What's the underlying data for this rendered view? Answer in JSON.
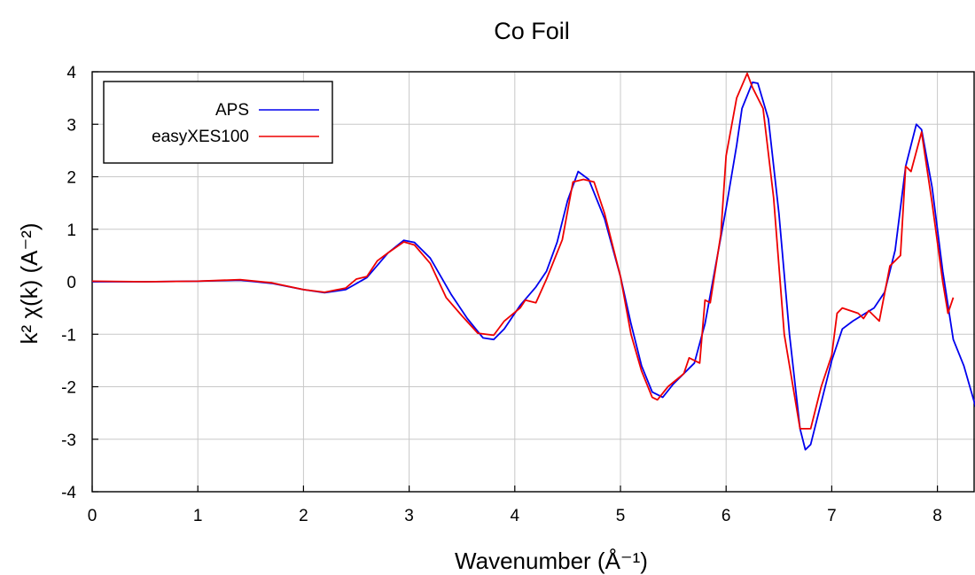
{
  "chart_data": {
    "type": "line",
    "title": "Co Foil",
    "xlabel": "Wavenumber    (Å⁻¹)",
    "ylabel": "k² χ(k)    (A⁻²)",
    "xlim": [
      0,
      8.4
    ],
    "ylim": [
      -4,
      4
    ],
    "xticks": [
      "0",
      "1",
      "2",
      "3",
      "4",
      "5",
      "6",
      "7",
      "8"
    ],
    "yticks": [
      "4",
      "3",
      "2",
      "1",
      "0",
      "-1",
      "-2",
      "-3",
      "-4"
    ],
    "grid": true,
    "legend_position": "top-left",
    "series": [
      {
        "name": "APS",
        "color": "#0000ee",
        "points": [
          [
            0,
            0
          ],
          [
            0.5,
            0
          ],
          [
            1,
            0.01
          ],
          [
            1.4,
            0.03
          ],
          [
            1.7,
            -0.03
          ],
          [
            2,
            -0.15
          ],
          [
            2.2,
            -0.21
          ],
          [
            2.4,
            -0.15
          ],
          [
            2.6,
            0.08
          ],
          [
            2.8,
            0.55
          ],
          [
            2.95,
            0.79
          ],
          [
            3.05,
            0.75
          ],
          [
            3.2,
            0.45
          ],
          [
            3.4,
            -0.25
          ],
          [
            3.55,
            -0.7
          ],
          [
            3.7,
            -1.07
          ],
          [
            3.8,
            -1.1
          ],
          [
            3.9,
            -0.9
          ],
          [
            4.05,
            -0.45
          ],
          [
            4.2,
            -0.1
          ],
          [
            4.3,
            0.2
          ],
          [
            4.4,
            0.75
          ],
          [
            4.5,
            1.55
          ],
          [
            4.6,
            2.1
          ],
          [
            4.7,
            1.95
          ],
          [
            4.85,
            1.2
          ],
          [
            5,
            0.1
          ],
          [
            5.1,
            -0.8
          ],
          [
            5.2,
            -1.6
          ],
          [
            5.3,
            -2.1
          ],
          [
            5.4,
            -2.2
          ],
          [
            5.5,
            -1.95
          ],
          [
            5.7,
            -1.55
          ],
          [
            5.8,
            -0.8
          ],
          [
            5.9,
            0.3
          ],
          [
            6,
            1.4
          ],
          [
            6.1,
            2.6
          ],
          [
            6.15,
            3.3
          ],
          [
            6.25,
            3.8
          ],
          [
            6.3,
            3.78
          ],
          [
            6.4,
            3.1
          ],
          [
            6.5,
            1.3
          ],
          [
            6.6,
            -1
          ],
          [
            6.7,
            -2.8
          ],
          [
            6.75,
            -3.2
          ],
          [
            6.8,
            -3.1
          ],
          [
            6.9,
            -2.3
          ],
          [
            7,
            -1.5
          ],
          [
            7.1,
            -0.9
          ],
          [
            7.2,
            -0.75
          ],
          [
            7.4,
            -0.5
          ],
          [
            7.5,
            -0.2
          ],
          [
            7.6,
            0.6
          ],
          [
            7.7,
            2.2
          ],
          [
            7.8,
            3
          ],
          [
            7.85,
            2.9
          ],
          [
            7.95,
            1.8
          ],
          [
            8.05,
            0.2
          ],
          [
            8.15,
            -1.1
          ],
          [
            8.25,
            -1.6
          ],
          [
            8.35,
            -2.3
          ],
          [
            8.4,
            -2.65
          ]
        ]
      },
      {
        "name": "easyXES100",
        "color": "#ee0000",
        "points": [
          [
            0,
            0.01
          ],
          [
            0.5,
            0
          ],
          [
            1,
            0.01
          ],
          [
            1.4,
            0.04
          ],
          [
            1.7,
            -0.02
          ],
          [
            2,
            -0.15
          ],
          [
            2.2,
            -0.2
          ],
          [
            2.4,
            -0.12
          ],
          [
            2.5,
            0.05
          ],
          [
            2.6,
            0.1
          ],
          [
            2.7,
            0.4
          ],
          [
            2.8,
            0.55
          ],
          [
            2.95,
            0.76
          ],
          [
            3.05,
            0.7
          ],
          [
            3.2,
            0.35
          ],
          [
            3.35,
            -0.3
          ],
          [
            3.5,
            -0.65
          ],
          [
            3.65,
            -0.98
          ],
          [
            3.8,
            -1.02
          ],
          [
            3.9,
            -0.75
          ],
          [
            4.05,
            -0.5
          ],
          [
            4.1,
            -0.35
          ],
          [
            4.2,
            -0.4
          ],
          [
            4.3,
            0.05
          ],
          [
            4.45,
            0.8
          ],
          [
            4.55,
            1.9
          ],
          [
            4.65,
            1.95
          ],
          [
            4.75,
            1.9
          ],
          [
            4.85,
            1.3
          ],
          [
            5,
            0.1
          ],
          [
            5.1,
            -1
          ],
          [
            5.2,
            -1.7
          ],
          [
            5.3,
            -2.2
          ],
          [
            5.35,
            -2.25
          ],
          [
            5.45,
            -2
          ],
          [
            5.6,
            -1.75
          ],
          [
            5.65,
            -1.45
          ],
          [
            5.75,
            -1.55
          ],
          [
            5.8,
            -0.35
          ],
          [
            5.85,
            -0.4
          ],
          [
            5.95,
            0.9
          ],
          [
            6,
            2.4
          ],
          [
            6.1,
            3.5
          ],
          [
            6.2,
            3.97
          ],
          [
            6.25,
            3.7
          ],
          [
            6.35,
            3.3
          ],
          [
            6.45,
            1.6
          ],
          [
            6.55,
            -1
          ],
          [
            6.7,
            -2.8
          ],
          [
            6.8,
            -2.8
          ],
          [
            6.9,
            -2
          ],
          [
            7,
            -1.4
          ],
          [
            7.05,
            -0.6
          ],
          [
            7.1,
            -0.5
          ],
          [
            7.25,
            -0.6
          ],
          [
            7.3,
            -0.7
          ],
          [
            7.35,
            -0.55
          ],
          [
            7.45,
            -0.75
          ],
          [
            7.55,
            0.3
          ],
          [
            7.65,
            0.5
          ],
          [
            7.7,
            2.2
          ],
          [
            7.75,
            2.1
          ],
          [
            7.85,
            2.85
          ],
          [
            7.95,
            1.5
          ],
          [
            8.05,
            0
          ],
          [
            8.1,
            -0.6
          ],
          [
            8.15,
            -0.3
          ]
        ]
      }
    ]
  }
}
